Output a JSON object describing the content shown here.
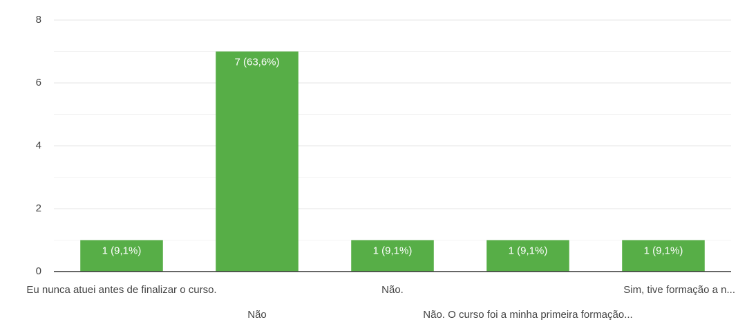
{
  "chart_data": {
    "type": "bar",
    "categories": [
      "Eu nunca atuei antes de finalizar o curso.",
      "Não",
      "Não.",
      "Não. O curso foi a minha primeira formação...",
      "Sim, tive formação a n..."
    ],
    "values": [
      1,
      7,
      1,
      1,
      1
    ],
    "value_labels": [
      "1 (9,1%)",
      "7 (63,6%)",
      "1 (9,1%)",
      "1 (9,1%)",
      "1 (9,1%)"
    ],
    "color": "#57ae47",
    "ylim": [
      0,
      8
    ],
    "yticks": [
      0,
      2,
      4,
      6,
      8
    ],
    "yminorticks": [
      1,
      3,
      5,
      7
    ],
    "grid": true
  }
}
